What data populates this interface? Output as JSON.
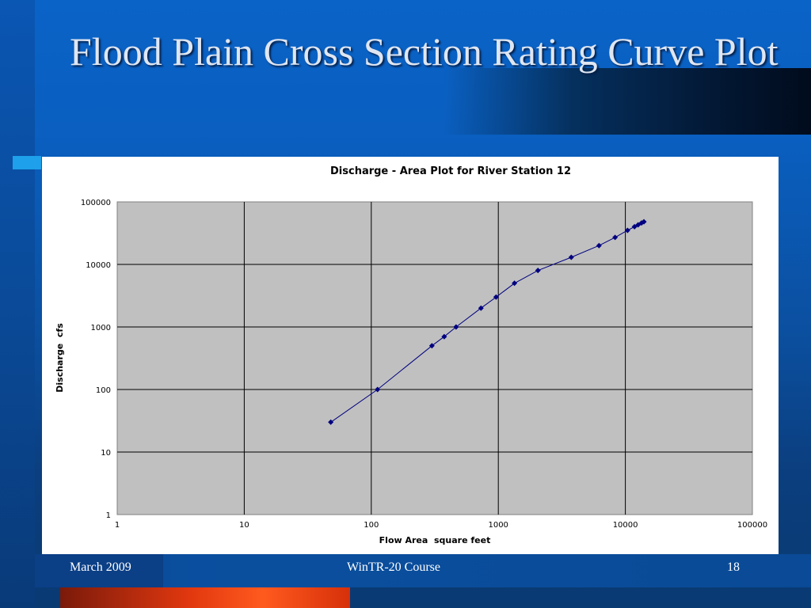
{
  "slide": {
    "title": "Flood Plain Cross Section Rating Curve Plot",
    "footer": {
      "date": "March 2009",
      "course": "WinTR-20 Course",
      "page": "18"
    },
    "colors": {
      "title_text": "#dfe6f2",
      "plot_area": "#c0c0c0",
      "series": "#000080"
    }
  },
  "chart_data": {
    "type": "scatter",
    "title": "Discharge - Area Plot for River Station 12",
    "xlabel": "Flow Area  square feet",
    "ylabel": "Discharge  cfs",
    "xscale": "log",
    "yscale": "log",
    "xlim": [
      1,
      100000
    ],
    "ylim": [
      1,
      100000
    ],
    "x_ticks": [
      "1",
      "10",
      "100",
      "1000",
      "10000",
      "100000"
    ],
    "y_ticks": [
      "1",
      "10",
      "100",
      "1000",
      "10000",
      "100000"
    ],
    "grid": true,
    "legend": "none",
    "series": [
      {
        "x": [
          48,
          112,
          300,
          375,
          465,
          730,
          960,
          1340,
          2050,
          3750,
          6200,
          8300,
          10400,
          11800,
          12600,
          13400,
          14000
        ],
        "y": [
          30,
          100,
          500,
          700,
          1000,
          2000,
          3000,
          5000,
          8000,
          13000,
          20000,
          27000,
          35000,
          40000,
          43000,
          46000,
          48000
        ]
      }
    ]
  }
}
